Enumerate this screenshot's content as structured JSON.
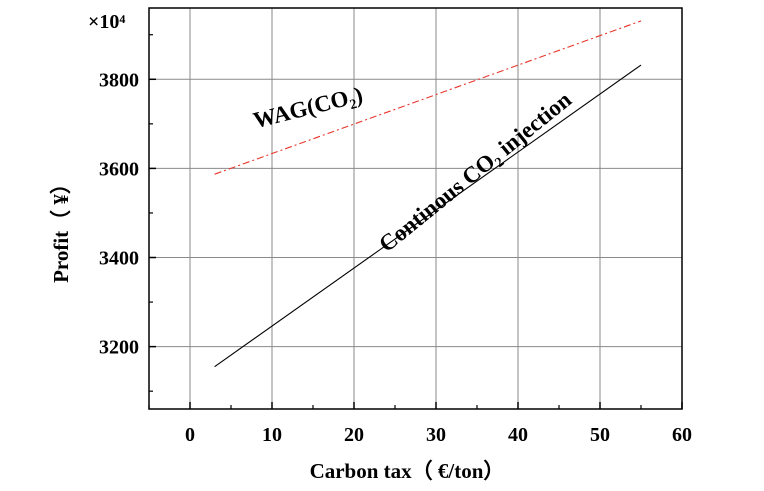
{
  "chart_data": {
    "type": "line",
    "xlabel": "Carbon tax（ €/ton）",
    "ylabel": "Profit（ ¥）",
    "y_multiplier": "×10⁴",
    "xlim": [
      -5,
      60
    ],
    "ylim": [
      3060,
      3960
    ],
    "x_ticks": [
      0,
      10,
      20,
      30,
      40,
      50,
      60
    ],
    "y_ticks": [
      3200,
      3400,
      3600,
      3800
    ],
    "grid": true,
    "series": [
      {
        "name": "WAG(CO₂)",
        "color": "#e8352b",
        "style": "dashdot",
        "x": [
          3,
          55
        ],
        "y": [
          3587,
          3931
        ]
      },
      {
        "name": "Continous CO₂ injection",
        "color": "#000000",
        "style": "solid",
        "x": [
          3,
          55
        ],
        "y": [
          3155,
          3832
        ]
      }
    ],
    "annotations": [
      {
        "text": "WAG(CO₂)",
        "x": 8,
        "y": 3690,
        "rotation": -14
      },
      {
        "text": "Continous CO₂ injection",
        "x": 24,
        "y": 3410,
        "rotation": -39
      }
    ]
  }
}
